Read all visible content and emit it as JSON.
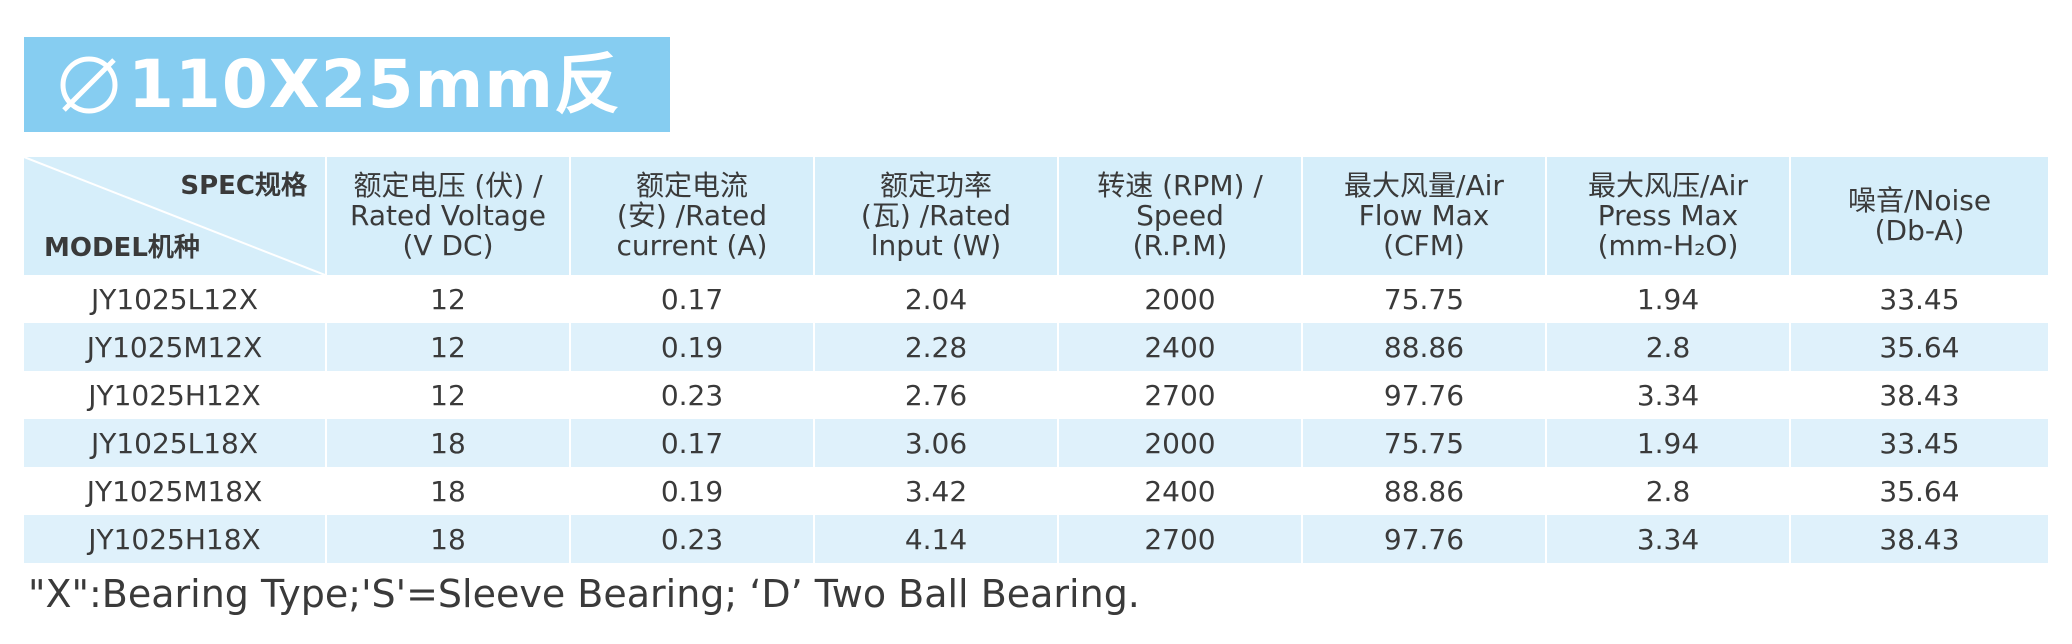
{
  "title": {
    "icon": "diameter-icon",
    "text": "110X25mm反",
    "background_color": "#86cdf1"
  },
  "table": {
    "corner": {
      "spec_label": "SPEC规格",
      "model_label": "MODEL机种"
    },
    "columns": [
      {
        "lines": [
          "额定电压 (伏) /",
          "Rated Voltage",
          "(V DC)"
        ]
      },
      {
        "lines": [
          "额定电流",
          "(安) /Rated",
          "current (A)"
        ]
      },
      {
        "lines": [
          "额定功率",
          "(瓦) /Rated",
          "lnput (W)"
        ]
      },
      {
        "lines": [
          "转速 (RPM) /",
          "Speed",
          "(R.P.M)"
        ]
      },
      {
        "lines": [
          "最大风量/Air",
          "Flow Max",
          "(CFM)"
        ]
      },
      {
        "lines": [
          "最大风压/Air",
          "Press Max",
          "(mm-H₂O)"
        ]
      },
      {
        "lines": [
          "噪音/Noise",
          "(Db-A)"
        ]
      }
    ],
    "rows": [
      [
        "JY1025L12X",
        "12",
        "0.17",
        "2.04",
        "2000",
        "75.75",
        "1.94",
        "33.45"
      ],
      [
        "JY1025M12X",
        "12",
        "0.19",
        "2.28",
        "2400",
        "88.86",
        "2.8",
        "35.64"
      ],
      [
        "JY1025H12X",
        "12",
        "0.23",
        "2.76",
        "2700",
        "97.76",
        "3.34",
        "38.43"
      ],
      [
        "JY1025L18X",
        "18",
        "0.17",
        "3.06",
        "2000",
        "75.75",
        "1.94",
        "33.45"
      ],
      [
        "JY1025M18X",
        "18",
        "0.19",
        "3.42",
        "2400",
        "88.86",
        "2.8",
        "35.64"
      ],
      [
        "JY1025H18X",
        "18",
        "0.23",
        "4.14",
        "2700",
        "97.76",
        "3.34",
        "38.43"
      ]
    ],
    "header_color": "#d6eefa",
    "stripe_color": "#dff1fb"
  },
  "footnote": "\"X\":Bearing Type;'S'=Sleeve Bearing; ‘D’ Two Ball Bearing."
}
